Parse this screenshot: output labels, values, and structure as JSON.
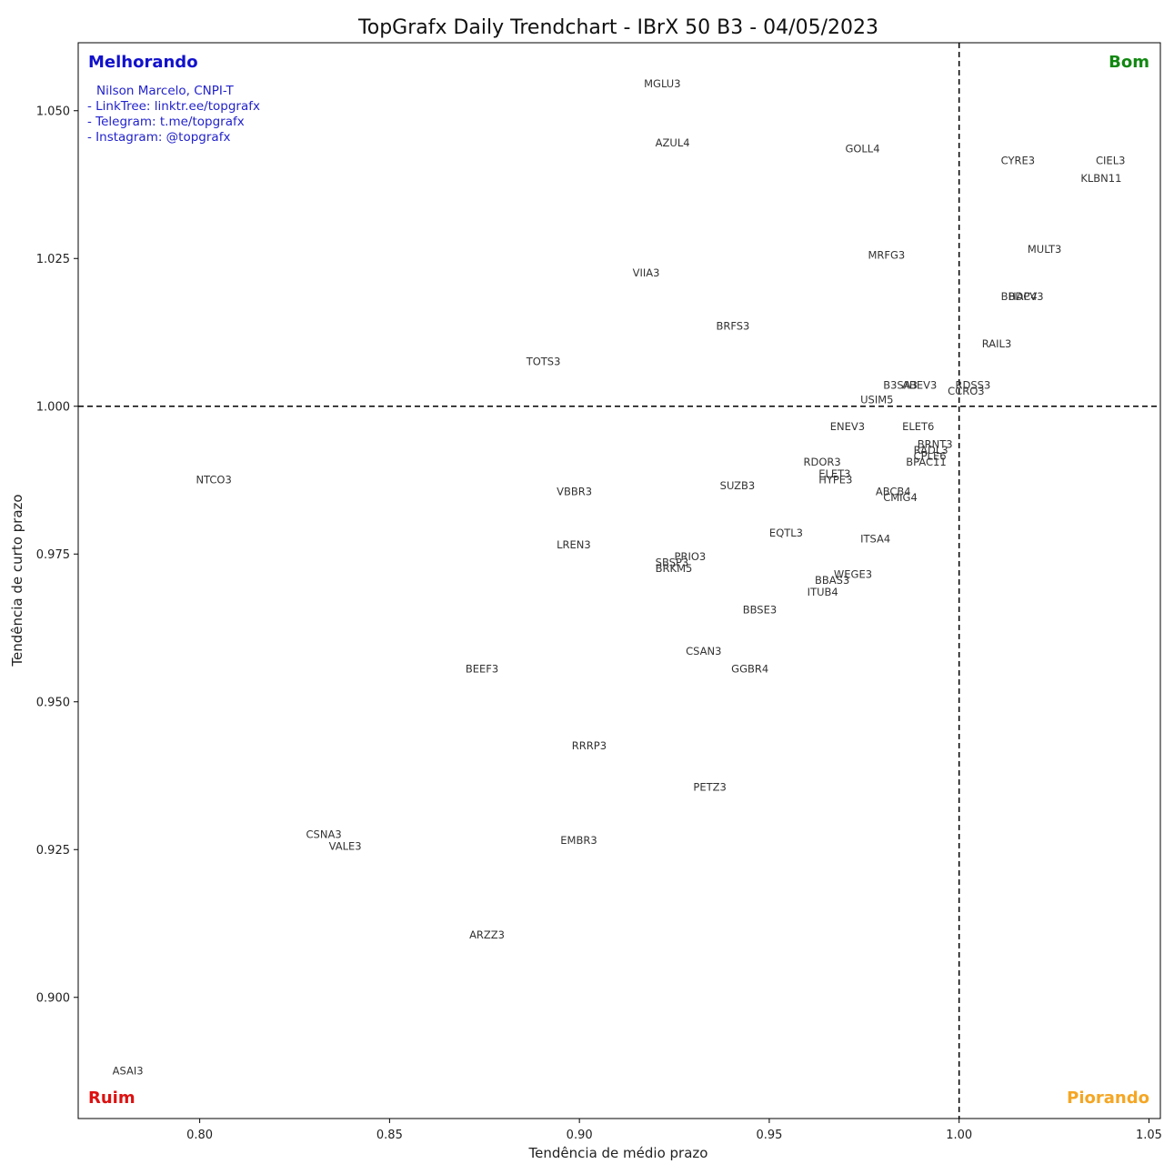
{
  "chart_data": {
    "type": "scatter",
    "title": "TopGrafx Daily Trendchart - IBrX 50 B3 - 04/05/2023",
    "xlabel": "Tendência de médio prazo",
    "ylabel": "Tendência de curto prazo",
    "xlim": [
      0.768,
      1.053
    ],
    "ylim": [
      0.8795,
      1.0615
    ],
    "xticks": [
      0.8,
      0.85,
      0.9,
      0.95,
      1.0,
      1.05
    ],
    "yticks": [
      0.9,
      0.925,
      0.95,
      0.975,
      1.0,
      1.025,
      1.05
    ],
    "xtick_labels": [
      "0.80",
      "0.85",
      "0.90",
      "0.95",
      "1.00",
      "1.05"
    ],
    "ytick_labels": [
      "0.900",
      "0.925",
      "0.950",
      "0.975",
      "1.000",
      "1.025",
      "1.050"
    ],
    "reference_lines": {
      "x": 1.0,
      "y": 1.0,
      "style": "dashed"
    },
    "grid": false,
    "quadrants": [
      {
        "label": "Melhorando",
        "position": "top-left",
        "color": "#1111cc"
      },
      {
        "label": "Bom",
        "position": "top-right",
        "color": "#118811"
      },
      {
        "label": "Ruim",
        "position": "bottom-left",
        "color": "#dd1111"
      },
      {
        "label": "Piorando",
        "position": "bottom-right",
        "color": "#f5a623"
      }
    ],
    "annotation": [
      "Nilson Marcelo, CNPI-T",
      "- LinkTree: linktr.ee/topgrafx",
      "- Telegram: t.me/topgrafx",
      "- Instagram: @topgrafx"
    ],
    "points": [
      {
        "label": "MGLU3",
        "x": 0.917,
        "y": 1.054
      },
      {
        "label": "AZUL4",
        "x": 0.92,
        "y": 1.044
      },
      {
        "label": "GOLL4",
        "x": 0.97,
        "y": 1.043
      },
      {
        "label": "CYRE3",
        "x": 1.011,
        "y": 1.041
      },
      {
        "label": "CIEL3",
        "x": 1.036,
        "y": 1.041
      },
      {
        "label": "KLBN11",
        "x": 1.032,
        "y": 1.038
      },
      {
        "label": "MULT3",
        "x": 1.018,
        "y": 1.026
      },
      {
        "label": "MRFG3",
        "x": 0.976,
        "y": 1.025
      },
      {
        "label": "VIIA3",
        "x": 0.914,
        "y": 1.022
      },
      {
        "label": "HAPV3",
        "x": 1.013,
        "y": 1.018
      },
      {
        "label": "BBDC4",
        "x": 1.011,
        "y": 1.018
      },
      {
        "label": "BRFS3",
        "x": 0.936,
        "y": 1.013
      },
      {
        "label": "RAIL3",
        "x": 1.006,
        "y": 1.01
      },
      {
        "label": "TOTS3",
        "x": 0.886,
        "y": 1.007
      },
      {
        "label": "B3SA3",
        "x": 0.98,
        "y": 1.003
      },
      {
        "label": "RDSS3",
        "x": 0.999,
        "y": 1.003
      },
      {
        "label": "ABEV3",
        "x": 0.985,
        "y": 1.003
      },
      {
        "label": "CCRO3",
        "x": 0.997,
        "y": 1.002
      },
      {
        "label": "USIM5",
        "x": 0.974,
        "y": 1.0005
      },
      {
        "label": "ENEV3",
        "x": 0.966,
        "y": 0.996
      },
      {
        "label": "ELET6",
        "x": 0.985,
        "y": 0.996
      },
      {
        "label": "BRNT3",
        "x": 0.989,
        "y": 0.993
      },
      {
        "label": "RADL3",
        "x": 0.988,
        "y": 0.992
      },
      {
        "label": "CPLE6",
        "x": 0.988,
        "y": 0.991
      },
      {
        "label": "BPAC11",
        "x": 0.986,
        "y": 0.99
      },
      {
        "label": "RDOR3",
        "x": 0.959,
        "y": 0.99
      },
      {
        "label": "NTCO3",
        "x": 0.799,
        "y": 0.987
      },
      {
        "label": "ELET3",
        "x": 0.963,
        "y": 0.988
      },
      {
        "label": "HYPE3",
        "x": 0.963,
        "y": 0.987
      },
      {
        "label": "SUZB3",
        "x": 0.937,
        "y": 0.986
      },
      {
        "label": "VBBR3",
        "x": 0.894,
        "y": 0.985
      },
      {
        "label": "ABCB4",
        "x": 0.978,
        "y": 0.985
      },
      {
        "label": "CMIG4",
        "x": 0.98,
        "y": 0.984
      },
      {
        "label": "EQTL3",
        "x": 0.95,
        "y": 0.978
      },
      {
        "label": "ITSA4",
        "x": 0.974,
        "y": 0.977
      },
      {
        "label": "LREN3",
        "x": 0.894,
        "y": 0.976
      },
      {
        "label": "PRIO3",
        "x": 0.925,
        "y": 0.974
      },
      {
        "label": "SBSP3",
        "x": 0.92,
        "y": 0.973
      },
      {
        "label": "BRKM5",
        "x": 0.92,
        "y": 0.972
      },
      {
        "label": "WEGE3",
        "x": 0.967,
        "y": 0.971
      },
      {
        "label": "BBAS3",
        "x": 0.962,
        "y": 0.97
      },
      {
        "label": "ITUB4",
        "x": 0.96,
        "y": 0.968
      },
      {
        "label": "BBSE3",
        "x": 0.943,
        "y": 0.965
      },
      {
        "label": "CSAN3",
        "x": 0.928,
        "y": 0.958
      },
      {
        "label": "GGBR4",
        "x": 0.94,
        "y": 0.955
      },
      {
        "label": "BEEF3",
        "x": 0.87,
        "y": 0.955
      },
      {
        "label": "RRRP3",
        "x": 0.898,
        "y": 0.942
      },
      {
        "label": "PETZ3",
        "x": 0.93,
        "y": 0.935
      },
      {
        "label": "CSNA3",
        "x": 0.828,
        "y": 0.927
      },
      {
        "label": "VALE3",
        "x": 0.834,
        "y": 0.925
      },
      {
        "label": "EMBR3",
        "x": 0.895,
        "y": 0.926
      },
      {
        "label": "ARZZ3",
        "x": 0.871,
        "y": 0.91
      },
      {
        "label": "ASAI3",
        "x": 0.777,
        "y": 0.887
      }
    ]
  }
}
